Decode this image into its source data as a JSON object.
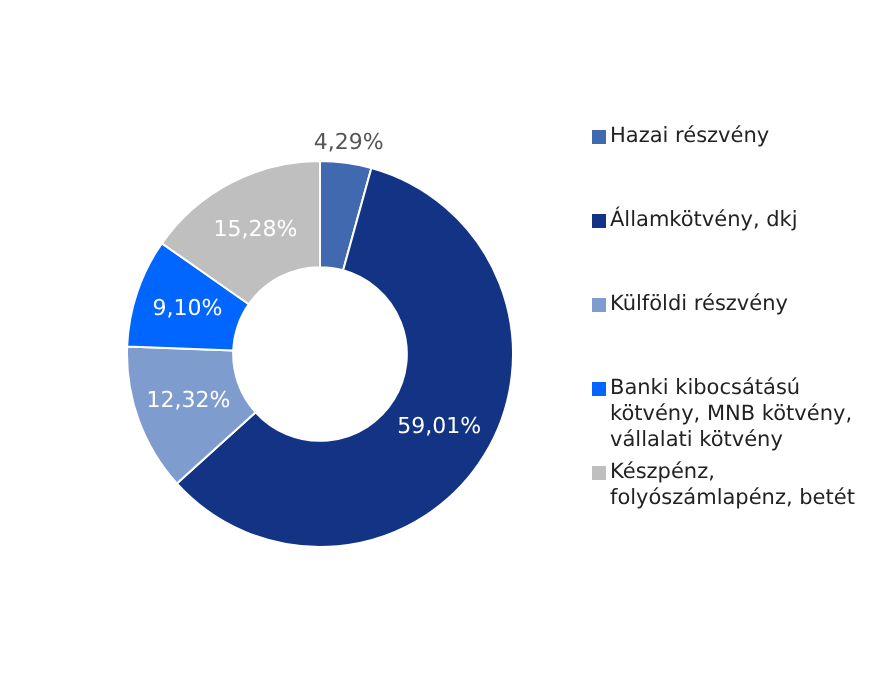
{
  "chart_data": {
    "type": "donut",
    "categories": [
      "Hazai részvény",
      "Államkötvény, dkj",
      "Külföldi részvény",
      "Banki kibocsátású kötvény, MNB kötvény, vállalati kötvény",
      "Készpénz, folyószámlapénz, betét"
    ],
    "values": [
      4.29,
      59.01,
      12.32,
      9.1,
      15.28
    ],
    "colors": [
      "#4169b0",
      "#133385",
      "#7f9ccf",
      "#0066ff",
      "#bfbfbf"
    ],
    "value_labels": [
      "4,29%",
      "59,01%",
      "12,32%",
      "9,10%",
      "15,28%"
    ],
    "legend": "right"
  }
}
